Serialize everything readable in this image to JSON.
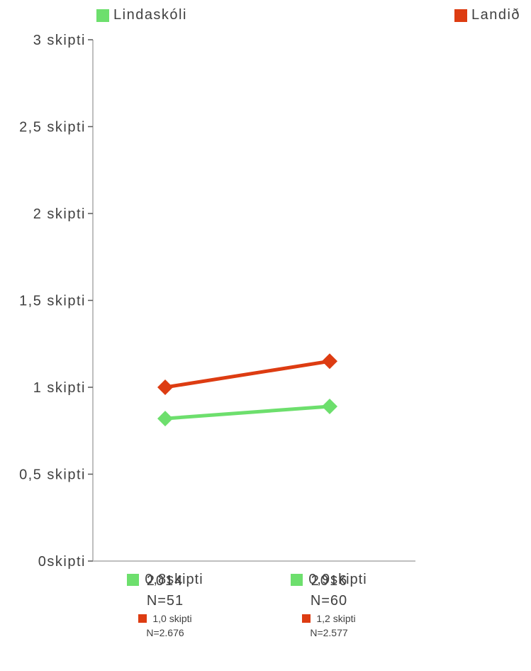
{
  "legend": [
    {
      "label": "Lindaskóli",
      "color": "#6ddf6d"
    },
    {
      "label": "Landið",
      "color": "#dd3c12"
    }
  ],
  "chart_data": {
    "type": "line",
    "categories": [
      "2014",
      "2016"
    ],
    "series": [
      {
        "name": "Lindaskóli",
        "values": [
          0.82,
          0.89
        ],
        "color": "#6ddf6d"
      },
      {
        "name": "Landið",
        "values": [
          1.0,
          1.15
        ],
        "color": "#dd3c12"
      }
    ],
    "ylim": [
      0,
      3
    ],
    "yticks": [
      0,
      0.5,
      1,
      1.5,
      2,
      2.5,
      3
    ],
    "ytick_labels": [
      "0skipti",
      "0,5 skipti",
      "1 skipti",
      "1,5 skipti",
      "2 skipti",
      "2,5 skipti",
      "3 skipti"
    ],
    "legend_position": "top",
    "grid": false
  },
  "footnotes": [
    {
      "year": "2014",
      "school_value": "0,8skipti",
      "school_n": "N=51",
      "country_value": "1,0 skipti",
      "country_n": "N=2.676"
    },
    {
      "year": "2016",
      "school_value": "0,9skipti",
      "school_n": "N=60",
      "country_value": "1,2 skipti",
      "country_n": "N=2.577"
    }
  ]
}
